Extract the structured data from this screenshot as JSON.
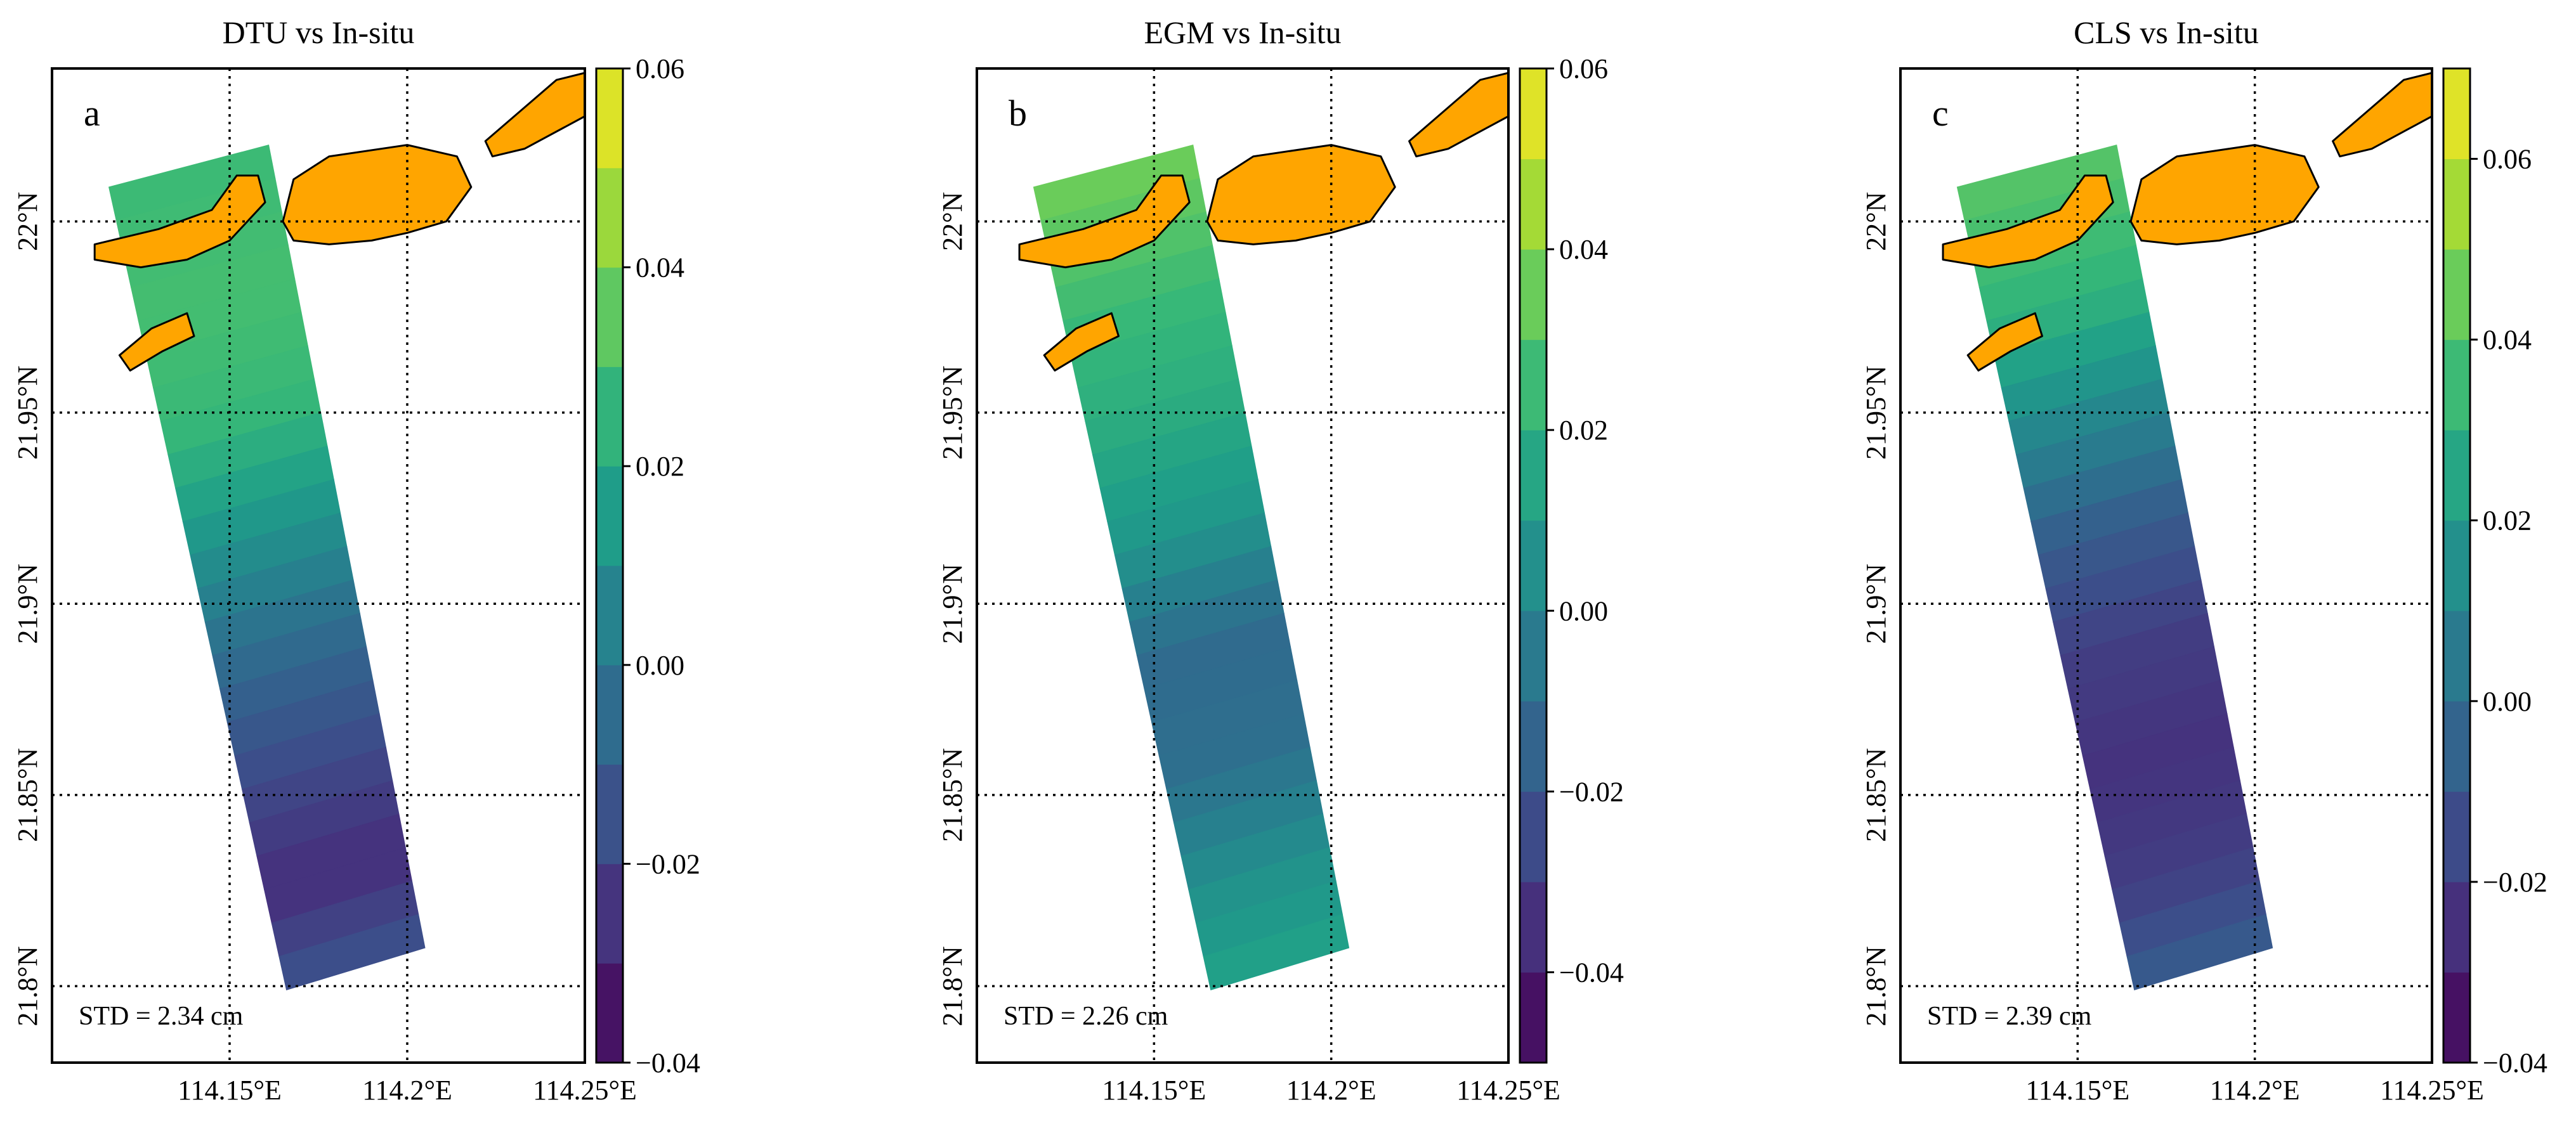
{
  "chart_data": [
    {
      "type": "heatmap",
      "title": "DTU vs In-situ",
      "panel_label": "a",
      "annotation": "STD = 2.34 cm",
      "xlim": [
        114.1,
        114.25
      ],
      "ylim": [
        21.78,
        22.04
      ],
      "xticks": [
        114.15,
        114.2,
        114.25
      ],
      "xtick_labels": [
        "114.15°E",
        "114.2°E",
        "114.25°E"
      ],
      "yticks": [
        21.8,
        21.85,
        21.9,
        21.95,
        22.0
      ],
      "ytick_labels": [
        "21.8°N",
        "21.85°N",
        "21.9°N",
        "21.95°N",
        "22°N"
      ],
      "grid": true,
      "colorbar": {
        "levels": [
          -0.04,
          -0.03,
          -0.02,
          -0.01,
          0.0,
          0.01,
          0.02,
          0.03,
          0.04,
          0.05,
          0.06
        ],
        "ticks": [
          -0.04,
          -0.02,
          0.0,
          0.02,
          0.04,
          0.06
        ],
        "tick_labels": [
          "−0.04",
          "−0.02",
          "0.00",
          "0.02",
          "0.04",
          "0.06"
        ]
      },
      "swath_profile": [
        {
          "lat": 22.01,
          "value": 0.028
        },
        {
          "lat": 21.98,
          "value": 0.03
        },
        {
          "lat": 21.95,
          "value": 0.027
        },
        {
          "lat": 21.92,
          "value": 0.012
        },
        {
          "lat": 21.89,
          "value": -0.005
        },
        {
          "lat": 21.86,
          "value": -0.017
        },
        {
          "lat": 21.83,
          "value": -0.027
        },
        {
          "lat": 21.8,
          "value": -0.012
        }
      ]
    },
    {
      "type": "heatmap",
      "title": "EGM vs In-situ",
      "panel_label": "b",
      "annotation": "STD = 2.26 cm",
      "xlim": [
        114.1,
        114.25
      ],
      "ylim": [
        21.78,
        22.04
      ],
      "xticks": [
        114.15,
        114.2,
        114.25
      ],
      "xtick_labels": [
        "114.15°E",
        "114.2°E",
        "114.25°E"
      ],
      "yticks": [
        21.8,
        21.85,
        21.9,
        21.95,
        22.0
      ],
      "ytick_labels": [
        "21.8°N",
        "21.85°N",
        "21.9°N",
        "21.95°N",
        "22°N"
      ],
      "grid": true,
      "colorbar": {
        "levels": [
          -0.05,
          -0.04,
          -0.03,
          -0.02,
          -0.01,
          0.0,
          0.01,
          0.02,
          0.03,
          0.04,
          0.05,
          0.06
        ],
        "ticks": [
          -0.04,
          -0.02,
          0.0,
          0.02,
          0.04,
          0.06
        ],
        "tick_labels": [
          "−0.04",
          "−0.02",
          "0.00",
          "0.02",
          "0.04",
          "0.06"
        ]
      },
      "swath_profile": [
        {
          "lat": 22.01,
          "value": 0.035
        },
        {
          "lat": 21.98,
          "value": 0.025
        },
        {
          "lat": 21.95,
          "value": 0.018
        },
        {
          "lat": 21.92,
          "value": 0.008
        },
        {
          "lat": 21.89,
          "value": -0.012
        },
        {
          "lat": 21.86,
          "value": -0.01
        },
        {
          "lat": 21.83,
          "value": 0.005
        },
        {
          "lat": 21.8,
          "value": 0.015
        }
      ]
    },
    {
      "type": "heatmap",
      "title": "CLS vs In-situ",
      "panel_label": "c",
      "annotation": "STD = 2.39 cm",
      "xlim": [
        114.1,
        114.25
      ],
      "ylim": [
        21.78,
        22.04
      ],
      "xticks": [
        114.15,
        114.2,
        114.25
      ],
      "xtick_labels": [
        "114.15°E",
        "114.2°E",
        "114.25°E"
      ],
      "yticks": [
        21.8,
        21.85,
        21.9,
        21.95,
        22.0
      ],
      "ytick_labels": [
        "21.8°N",
        "21.85°N",
        "21.9°N",
        "21.95°N",
        "22°N"
      ],
      "grid": true,
      "colorbar": {
        "levels": [
          -0.04,
          -0.03,
          -0.02,
          -0.01,
          0.0,
          0.01,
          0.02,
          0.03,
          0.04,
          0.05,
          0.06,
          0.07
        ],
        "ticks": [
          -0.04,
          -0.02,
          0.0,
          0.02,
          0.04,
          0.06
        ],
        "tick_labels": [
          "−0.04",
          "−0.02",
          "0.00",
          "0.02",
          "0.04",
          "0.06"
        ]
      },
      "swath_profile": [
        {
          "lat": 22.01,
          "value": 0.04
        },
        {
          "lat": 21.98,
          "value": 0.032
        },
        {
          "lat": 21.95,
          "value": 0.012
        },
        {
          "lat": 21.92,
          "value": -0.008
        },
        {
          "lat": 21.89,
          "value": -0.02
        },
        {
          "lat": 21.86,
          "value": -0.024
        },
        {
          "lat": 21.83,
          "value": -0.02
        },
        {
          "lat": 21.8,
          "value": -0.005
        }
      ]
    }
  ],
  "colors": {
    "land": "#FFA500",
    "coast": "#000000",
    "colormap": [
      "#440154",
      "#482878",
      "#3E4A89",
      "#31688E",
      "#26828E",
      "#1F9E89",
      "#35B779",
      "#6DCD59",
      "#B4DE2C",
      "#FDE725"
    ]
  }
}
